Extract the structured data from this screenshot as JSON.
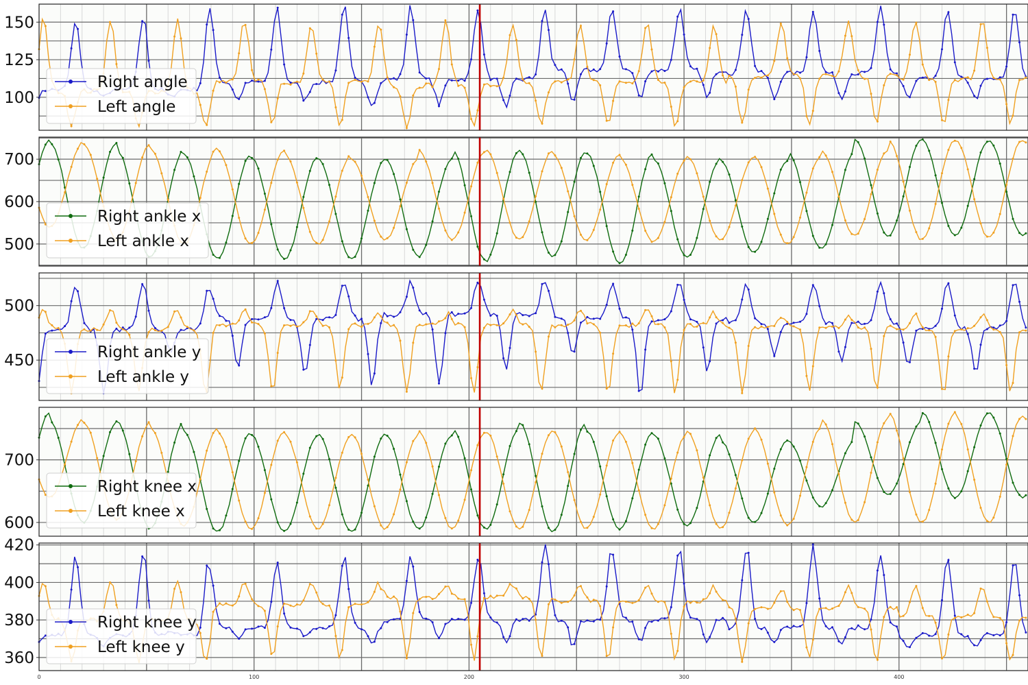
{
  "chart_data": [
    {
      "type": "line",
      "xlim": [
        0,
        460
      ],
      "ylim": [
        78,
        162
      ],
      "yticks": [
        100,
        125,
        150
      ],
      "grid": true,
      "legend": "left",
      "series": [
        {
          "name": "Right angle",
          "color": "#1a1ac8",
          "base": [
            105,
            110,
            112,
            118,
            116,
            112
          ],
          "peaks": [
            150,
            160,
            158,
            160,
            162,
            158,
            160,
            158,
            158,
            160,
            158,
            158,
            160,
            158
          ],
          "troughs": [
            100,
            100,
            98,
            98,
            95,
            95,
            92,
            96,
            99,
            99,
            99,
            99,
            99,
            99,
            99
          ]
        },
        {
          "name": "Left angle",
          "color": "#f0a020",
          "base": [
            104,
            110,
            108,
            110,
            114,
            112
          ],
          "peaks": [
            152,
            152,
            152,
            150,
            148,
            150,
            150,
            148,
            150,
            150,
            148,
            150,
            150,
            152
          ],
          "troughs": [
            82,
            80,
            80,
            82,
            80,
            80,
            80,
            82,
            82,
            80,
            82,
            80,
            82,
            82,
            82
          ]
        }
      ],
      "vline": 205,
      "xticks": []
    },
    {
      "type": "line",
      "xlim": [
        0,
        460
      ],
      "ylim": [
        448,
        752
      ],
      "yticks": [
        500,
        600,
        700
      ],
      "grid": true,
      "legend": "left",
      "series": [
        {
          "name": "Right ankle x",
          "color": "#0f6b0f",
          "base": [],
          "peaks": [
            745,
            740,
            720,
            710,
            705,
            700,
            700,
            720,
            720,
            715,
            700,
            695,
            715,
            745,
            745,
            745
          ],
          "troughs": [
            490,
            470,
            465,
            465,
            465,
            470,
            460,
            470,
            455,
            470,
            480,
            490,
            520,
            520,
            520
          ]
        },
        {
          "name": "Left ankle x",
          "color": "#f0a020",
          "base": [],
          "peaks": [
            745,
            740,
            735,
            725,
            720,
            710,
            700,
            720,
            720,
            710,
            700,
            705,
            705,
            720,
            745,
            745
          ],
          "troughs": [
            540,
            510,
            500,
            500,
            500,
            510,
            510,
            510,
            510,
            505,
            510,
            500,
            520,
            510,
            515
          ]
        }
      ],
      "vline": 205,
      "xticks": []
    },
    {
      "type": "line",
      "xlim": [
        0,
        460
      ],
      "ylim": [
        413,
        530
      ],
      "yticks": [
        450,
        500
      ],
      "grid": true,
      "legend": "left",
      "series": [
        {
          "name": "Right ankle y",
          "color": "#1a1ac8",
          "base": [
            478,
            488,
            492,
            488,
            484,
            480
          ],
          "peaks": [
            518,
            525,
            515,
            522,
            522,
            520,
            525,
            520,
            523,
            522,
            520,
            522,
            523,
            522
          ],
          "troughs": [
            420,
            458,
            445,
            435,
            428,
            430,
            440,
            455,
            418,
            440,
            455,
            448,
            445,
            440,
            450
          ]
        },
        {
          "name": "Left ankle y",
          "color": "#f0a020",
          "base": [
            478,
            482,
            482,
            482,
            480,
            478
          ],
          "peaks": [
            495,
            500,
            495,
            495,
            495,
            490,
            495,
            495,
            495,
            495,
            490,
            490,
            492,
            492
          ],
          "troughs": [
            420,
            420,
            420,
            420,
            422,
            420,
            420,
            420,
            418,
            420,
            420,
            422,
            422,
            418,
            420
          ]
        }
      ],
      "vline": 205,
      "xticks": []
    },
    {
      "type": "line",
      "xlim": [
        0,
        460
      ],
      "ylim": [
        578,
        784
      ],
      "yticks": [
        600,
        700
      ],
      "grid": true,
      "legend": "left",
      "series": [
        {
          "name": "Right knee x",
          "color": "#0f6b0f",
          "base": [],
          "peaks": [
            775,
            760,
            760,
            745,
            740,
            740,
            740,
            750,
            760,
            745,
            740,
            730,
            730,
            760,
            775,
            775
          ],
          "troughs": [
            600,
            590,
            585,
            585,
            585,
            590,
            590,
            585,
            590,
            595,
            600,
            625,
            645,
            640,
            640
          ]
        },
        {
          "name": "Left knee x",
          "color": "#f0a020",
          "base": [],
          "peaks": [
            770,
            765,
            760,
            750,
            745,
            740,
            740,
            745,
            745,
            745,
            740,
            745,
            750,
            765,
            775,
            770
          ],
          "troughs": [
            640,
            605,
            595,
            590,
            590,
            590,
            590,
            590,
            590,
            590,
            590,
            595,
            600,
            600,
            600
          ]
        }
      ],
      "vline": 205,
      "xticks": []
    },
    {
      "type": "line",
      "xlim": [
        0,
        460
      ],
      "ylim": [
        353,
        421
      ],
      "yticks": [
        360,
        380,
        400,
        420
      ],
      "grid": true,
      "legend": "left",
      "series": [
        {
          "name": "Right knee y",
          "color": "#1a1ac8",
          "base": [
            372,
            376,
            380,
            380,
            376,
            372
          ],
          "peaks": [
            414,
            420,
            408,
            412,
            416,
            412,
            418,
            420,
            416,
            418,
            420,
            416,
            414,
            412
          ],
          "troughs": [
            366,
            374,
            370,
            372,
            368,
            370,
            368,
            366,
            368,
            368,
            368,
            366,
            366,
            366,
            368
          ]
        },
        {
          "name": "Left knee y",
          "color": "#f0a020",
          "base": [
            380,
            388,
            392,
            390,
            386,
            382
          ],
          "peaks": [
            400,
            402,
            400,
            400,
            400,
            398,
            400,
            398,
            398,
            398,
            396,
            398,
            398,
            398
          ],
          "troughs": [
            358,
            358,
            358,
            360,
            360,
            360,
            358,
            360,
            358,
            358,
            358,
            360,
            358,
            358,
            358
          ]
        }
      ],
      "vline": 205,
      "xticks": [
        0,
        100,
        200,
        300,
        400
      ]
    }
  ],
  "colors": {
    "vline": "#c00000",
    "grid": "#6a6a6a",
    "minor_grid": "#d8d8d8",
    "background": "#fbfcfa"
  }
}
